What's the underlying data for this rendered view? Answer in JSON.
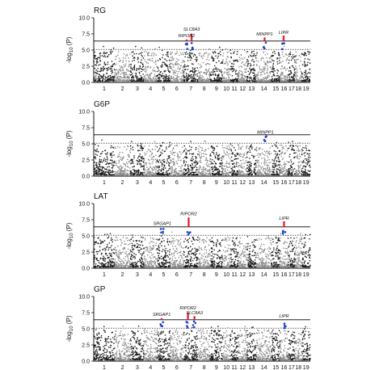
{
  "figure": {
    "y_label_prefix": "-log",
    "y_label_sub": "10",
    "y_label_suffix": " (P)"
  },
  "colors": {
    "chr_odd": "#1a1a1a",
    "chr_even": "#8c8c8c",
    "sig": "#e0192b",
    "sug": "#1f3fc8",
    "line": "#000000"
  },
  "chart_data": [
    {
      "type": "scatter",
      "title": "RG",
      "ylim": [
        0,
        10
      ],
      "yticks": [
        "0.0",
        "2.5",
        "5.0",
        "7.5",
        "10.0"
      ],
      "xticks": [
        "1",
        "2",
        "3",
        "4",
        "5",
        "6",
        "7",
        "8",
        "9",
        "10",
        "11",
        "12",
        "13",
        "14",
        "15",
        "16",
        "17",
        "18",
        "19"
      ],
      "significance_line": 6.4,
      "suggestive_line": 5.1,
      "grid": false,
      "peaks": [
        {
          "chr": "7",
          "pos": 0.55,
          "y": 7.6,
          "label": "SLC8A3"
        },
        {
          "chr": "7",
          "pos": 0.2,
          "y": 6.6,
          "label": "RIPOR2"
        },
        {
          "chr": "14",
          "pos": 0.55,
          "y": 6.9,
          "label": "MINPP1"
        },
        {
          "chr": "16",
          "pos": 0.45,
          "y": 7.1,
          "label": "LIPR"
        }
      ]
    },
    {
      "type": "scatter",
      "title": "G6P",
      "ylim": [
        0,
        10
      ],
      "yticks": [
        "0.0",
        "2.5",
        "5.0",
        "7.5",
        "10.0"
      ],
      "xticks": [
        "1",
        "2",
        "3",
        "4",
        "5",
        "6",
        "7",
        "8",
        "9",
        "10",
        "11",
        "12",
        "13",
        "14",
        "15",
        "16",
        "17",
        "18",
        "19"
      ],
      "significance_line": 6.4,
      "suggestive_line": 5.1,
      "grid": false,
      "peaks": [
        {
          "chr": "14",
          "pos": 0.6,
          "y": 6.2,
          "label": "MINPP1"
        }
      ]
    },
    {
      "type": "scatter",
      "title": "LAT",
      "ylim": [
        0,
        10
      ],
      "yticks": [
        "0.0",
        "2.5",
        "5.0",
        "7.5",
        "10.0"
      ],
      "xticks": [
        "1",
        "2",
        "3",
        "4",
        "5",
        "6",
        "7",
        "8",
        "9",
        "10",
        "11",
        "12",
        "13",
        "14",
        "15",
        "16",
        "17",
        "18",
        "19"
      ],
      "significance_line": 6.4,
      "suggestive_line": 5.1,
      "grid": false,
      "peaks": [
        {
          "chr": "5",
          "pos": 0.4,
          "y": 6.3,
          "label": "SRGAP1"
        },
        {
          "chr": "7",
          "pos": 0.35,
          "y": 7.8,
          "label": "RIPOR2"
        },
        {
          "chr": "16",
          "pos": 0.5,
          "y": 7.1,
          "label": "LIPR"
        }
      ]
    },
    {
      "type": "scatter",
      "title": "GP",
      "ylim": [
        0,
        10
      ],
      "yticks": [
        "0.0",
        "2.5",
        "5.0",
        "7.5",
        "10.0"
      ],
      "xticks": [
        "1",
        "2",
        "3",
        "4",
        "5",
        "6",
        "7",
        "8",
        "9",
        "10",
        "11",
        "12",
        "13",
        "14",
        "15",
        "16",
        "17",
        "18",
        "19"
      ],
      "significance_line": 6.4,
      "suggestive_line": 5.1,
      "grid": false,
      "peaks": [
        {
          "chr": "5",
          "pos": 0.35,
          "y": 6.6,
          "label": "SRGAP1"
        },
        {
          "chr": "7",
          "pos": 0.3,
          "y": 7.6,
          "label": "RIPOR2"
        },
        {
          "chr": "7",
          "pos": 0.75,
          "y": 6.9,
          "label": "SLC8A3"
        },
        {
          "chr": "16",
          "pos": 0.5,
          "y": 6.4,
          "label": "LIPR"
        }
      ]
    }
  ]
}
